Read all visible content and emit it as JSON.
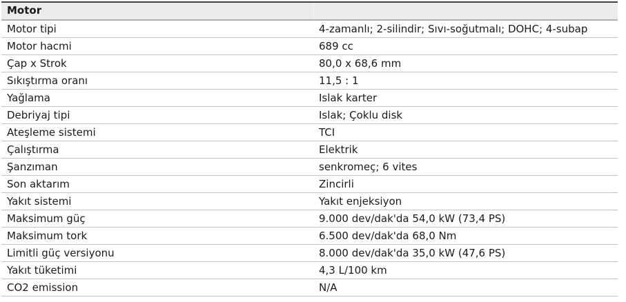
{
  "table": {
    "header": "Motor",
    "rows": [
      {
        "label": "Motor tipi",
        "value": "4-zamanlı; 2-silindir; Sıvı-soğutmalı; DOHC; 4-subap"
      },
      {
        "label": "Motor hacmi",
        "value": "689 cc"
      },
      {
        "label": "Çap x Strok",
        "value": "80,0 x 68,6 mm"
      },
      {
        "label": "Sıkıştırma oranı",
        "value": "11,5 : 1"
      },
      {
        "label": "Yağlama",
        "value": "Islak karter"
      },
      {
        "label": "Debriyaj tipi",
        "value": "Islak; Çoklu disk"
      },
      {
        "label": "Ateşleme sistemi",
        "value": "TCI"
      },
      {
        "label": "Çalıştırma",
        "value": "Elektrik"
      },
      {
        "label": "Şanzıman",
        "value": "senkromeç; 6 vites"
      },
      {
        "label": "Son aktarım",
        "value": "Zincirli"
      },
      {
        "label": "Yakıt sistemi",
        "value": "Yakıt enjeksiyon"
      },
      {
        "label": "Maksimum güç",
        "value": "9.000 dev/dak'da 54,0 kW (73,4 PS)"
      },
      {
        "label": "Maksimum tork",
        "value": "6.500 dev/dak'da 68,0 Nm"
      },
      {
        "label": "Limitli güç versiyonu",
        "value": "8.000 dev/dak'da 35,0 kW (47,6 PS)"
      },
      {
        "label": "Yakıt tüketimi",
        "value": "4,3 L/100 km"
      },
      {
        "label": "CO2 emission",
        "value": "N/A"
      }
    ],
    "colors": {
      "header_bg": "#ececec",
      "top_border": "#404040",
      "header_bottom_border": "#b0b0b0",
      "row_separator": "#c4c4c4",
      "text": "#1a1a1a"
    }
  }
}
